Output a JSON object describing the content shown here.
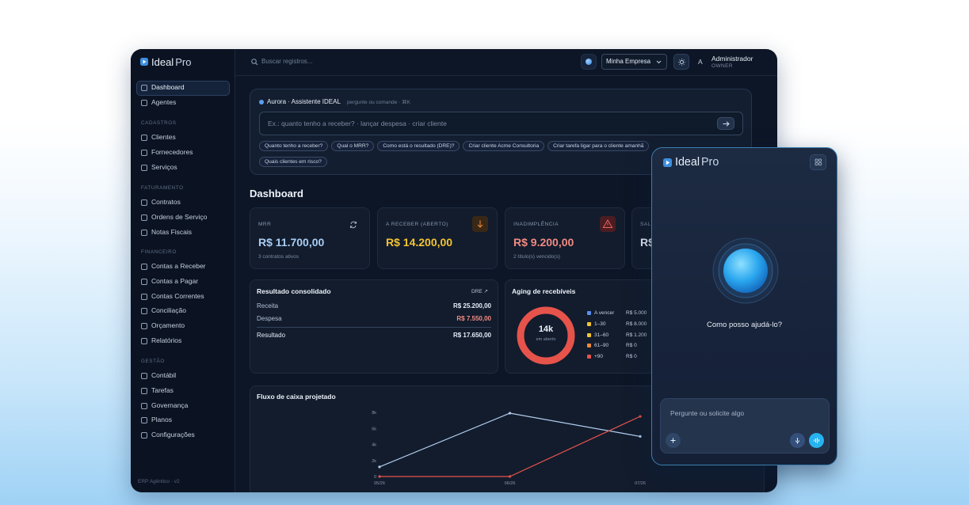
{
  "sidebar": {
    "logo": {
      "brand": "Ideal",
      "suffix": "Pro"
    },
    "nav": [
      "Dashboard",
      "Agentes"
    ],
    "sections": [
      {
        "title": "CADASTROS",
        "items": [
          "Clientes",
          "Fornecedores",
          "Serviços"
        ]
      },
      {
        "title": "FATURAMENTO",
        "items": [
          "Contratos",
          "Ordens de Serviço",
          "Notas Fiscais"
        ]
      },
      {
        "title": "FINANCEIRO",
        "items": [
          "Contas a Receber",
          "Contas a Pagar",
          "Contas Correntes",
          "Conciliação",
          "Orçamento",
          "Relatórios"
        ]
      },
      {
        "title": "GESTÃO",
        "items": [
          "Contábil",
          "Tarefas",
          "Governança",
          "Planos",
          "Configurações"
        ]
      }
    ],
    "footer": "ERP Agêntico · v2"
  },
  "topbar": {
    "search": "Buscar registros...",
    "company": "Minha Empresa",
    "avatar": "A",
    "user": "Administrador",
    "role": "OWNER"
  },
  "assistant": {
    "title": "Aurora · Assistente IDEAL",
    "hint": "pergunte ou comande · ⌘K",
    "placeholder": "Ex.: quanto tenho a receber? · lançar despesa · criar cliente",
    "chips": [
      "Quanto tenho a receber?",
      "Qual o MRR?",
      "Como está o resultado (DRE)?",
      "Criar cliente Acme Consultoria",
      "Criar tarefa ligar para o cliente amanhã",
      "Quais clientes em risco?"
    ]
  },
  "page_title": "Dashboard",
  "kpis": [
    {
      "label": "MRR",
      "value": "R$ 11.700,00",
      "note": "3 contratos ativos",
      "color": "#a9cdf4"
    },
    {
      "label": "A RECEBER (ABERTO)",
      "value": "R$ 14.200,00",
      "color": "#f4c430"
    },
    {
      "label": "INADIMPLÊNCIA",
      "value": "R$ 9.200,00",
      "note": "2 título(s) vencido(s)",
      "color": "#f28a82"
    },
    {
      "label": "SAL",
      "value": "R$",
      "color": "#e6edf7"
    }
  ],
  "result": {
    "title": "Resultado consolidado",
    "link": "DRE ↗",
    "rows": [
      {
        "label": "Receita",
        "amount": "R$ 25.200,00"
      },
      {
        "label": "Despesa",
        "amount": "R$ 7.550,00"
      },
      {
        "label": "Resultado",
        "amount": "R$ 17.650,00"
      }
    ]
  },
  "aging": {
    "title": "Aging de recebíveis",
    "center": "14k",
    "center_sub": "em aberto",
    "rows": [
      {
        "label": "A vencer",
        "amount": "R$ 5.000",
        "color": "#5b8def"
      },
      {
        "label": "1–30",
        "amount": "R$ 8.000",
        "color": "#f4c430"
      },
      {
        "label": "31–60",
        "amount": "R$ 1.200",
        "color": "#f4c430"
      },
      {
        "label": "61–90",
        "amount": "R$ 0",
        "color": "#f08a3c"
      },
      {
        "label": "+90",
        "amount": "R$ 0",
        "color": "#e5534b"
      }
    ]
  },
  "cashflow": {
    "title": "Fluxo de caixa projetado",
    "chart_data": {
      "type": "line",
      "categories": [
        "05/26",
        "06/26",
        "07/26"
      ],
      "series": [
        {
          "color": "#b3cdee",
          "values": [
            1200,
            7900,
            5000
          ]
        },
        {
          "color": "#e5534b",
          "values": [
            0,
            0,
            7500
          ]
        }
      ],
      "ylim": [
        0,
        8000
      ],
      "yticks": [
        0,
        {
          "value": 2000,
          "label": "2k"
        },
        {
          "value": 4000,
          "label": "4k"
        },
        {
          "value": 6000,
          "label": "6k"
        },
        {
          "value": 8000,
          "label": "8k"
        }
      ]
    }
  },
  "widget": {
    "brand": "Ideal",
    "suffix": "Pro",
    "prompt": "Como posso ajudá-lo?",
    "placeholder": "Pergunte ou solicite algo"
  }
}
